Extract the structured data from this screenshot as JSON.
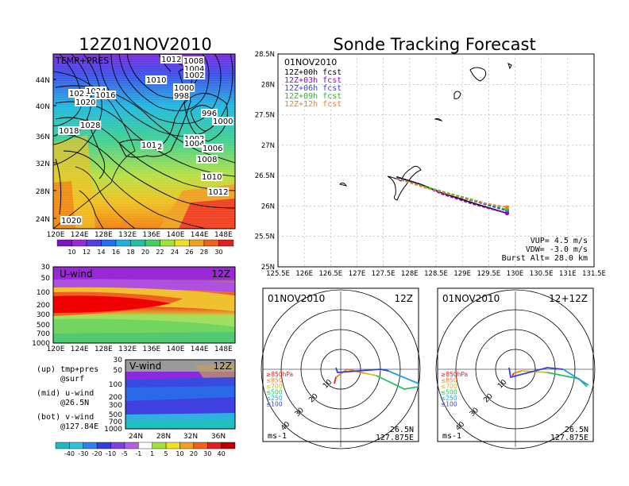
{
  "titles": {
    "left": "12Z01NOV2010",
    "right": "Sonde Tracking Forecast"
  },
  "map": {
    "panel_label": "TEMP+PRES",
    "lon_ticks": [
      "120E",
      "124E",
      "128E",
      "132E",
      "136E",
      "140E",
      "144E",
      "148E"
    ],
    "lat_ticks": [
      "44N",
      "40N",
      "36N",
      "32N",
      "28N",
      "24N"
    ],
    "isobar_labels": [
      "1012",
      "1008",
      "1004",
      "1002",
      "1010",
      "1000",
      "998",
      "996",
      "1000",
      "1026",
      "1024",
      "1016",
      "1020",
      "1018",
      "1028",
      "1014",
      "2",
      "1002",
      "1004",
      "1006",
      "1008",
      "1010",
      "1012",
      "1020"
    ],
    "colorbar": [
      "10",
      "12",
      "14",
      "16",
      "18",
      "20",
      "22",
      "24",
      "26",
      "28",
      "30"
    ]
  },
  "uwind": {
    "label": "U-wind",
    "time": "12Z",
    "y_ticks": [
      "30",
      "50",
      "100",
      "200",
      "300",
      "500",
      "700",
      "1000"
    ],
    "x_ticks": [
      "120E",
      "124E",
      "128E",
      "132E",
      "136E",
      "140E",
      "144E",
      "148E"
    ]
  },
  "vwind": {
    "label": "V-wind",
    "time": "12Z",
    "y_ticks": [
      "30",
      "50",
      "100",
      "200",
      "300",
      "500",
      "700",
      "1000"
    ],
    "x_ticks": [
      "24N",
      "28N",
      "32N",
      "36N"
    ]
  },
  "legend_notes": {
    "up": "(up) tmp+pres",
    "up2": "@surf",
    "mid": "(mid) u-wind",
    "mid2": "@26.5N",
    "bot": "(bot) v-wind",
    "bot2": "@127.84E"
  },
  "wind_colorbar": [
    "-40",
    "-30",
    "-20",
    "-10",
    "-5",
    "-1",
    "1",
    "5",
    "10",
    "20",
    "30",
    "40"
  ],
  "track": {
    "date": "01NOV2010",
    "x_ticks": [
      "125.5E",
      "126E",
      "126.5E",
      "127E",
      "127.5E",
      "128E",
      "128.5E",
      "129E",
      "129.5E",
      "130E",
      "130.5E",
      "131E",
      "131.5E"
    ],
    "y_ticks": [
      "28.5N",
      "28N",
      "27.5N",
      "27N",
      "26.5N",
      "26N",
      "25.5N",
      "25N"
    ],
    "stats": {
      "vup": "VUP=  4.5 m/s",
      "vdw": "VDW= -3.0 m/s",
      "burst": "Burst Alt= 28.0 km"
    }
  },
  "hodo_left": {
    "date": "01NOV2010",
    "time": "12Z",
    "unit": "ms-1",
    "lat": "26.5N",
    "lon": "127.875E"
  },
  "hodo_right": {
    "date": "01NOV2010",
    "time": "12+12Z",
    "unit": "ms-1",
    "lat": "26.5N",
    "lon": "127.875E"
  },
  "hodo_legend": [
    "≥850hPa",
    "≤850",
    "≤700",
    "≤500",
    "≤250",
    "≤100"
  ],
  "hodo_ring_labels": [
    "10",
    "20",
    "30",
    "40"
  ],
  "chart_data": {
    "type": "line",
    "title": "Sonde Tracking Forecast",
    "xlim": [
      125.5,
      131.5
    ],
    "ylim": [
      25.0,
      28.5
    ],
    "series": [
      {
        "name": "12Z+00h fcst",
        "color": "#000000",
        "x": [
          127.75,
          128.2,
          128.6,
          129.2,
          129.85
        ],
        "y": [
          26.48,
          26.36,
          26.22,
          26.05,
          25.88
        ]
      },
      {
        "name": "12Z+03h fcst",
        "color": "#9b00c8",
        "x": [
          127.75,
          128.2,
          128.6,
          129.2,
          129.85
        ],
        "y": [
          26.47,
          26.35,
          26.2,
          26.03,
          25.88
        ]
      },
      {
        "name": "12Z+06h fcst",
        "color": "#3a3aff",
        "x": [
          127.75,
          128.25,
          128.7,
          129.3,
          129.85
        ],
        "y": [
          26.46,
          26.33,
          26.2,
          26.06,
          25.92
        ]
      },
      {
        "name": "12Z+09h fcst",
        "color": "#20c020",
        "x": [
          127.75,
          128.25,
          128.7,
          129.3,
          129.85
        ],
        "y": [
          26.45,
          26.33,
          26.22,
          26.08,
          25.94
        ]
      },
      {
        "name": "12Z+12h fcst",
        "color": "#f08020",
        "x": [
          127.75,
          128.3,
          128.8,
          129.4,
          129.85
        ],
        "y": [
          26.45,
          26.3,
          26.18,
          26.05,
          25.98
        ]
      }
    ]
  }
}
